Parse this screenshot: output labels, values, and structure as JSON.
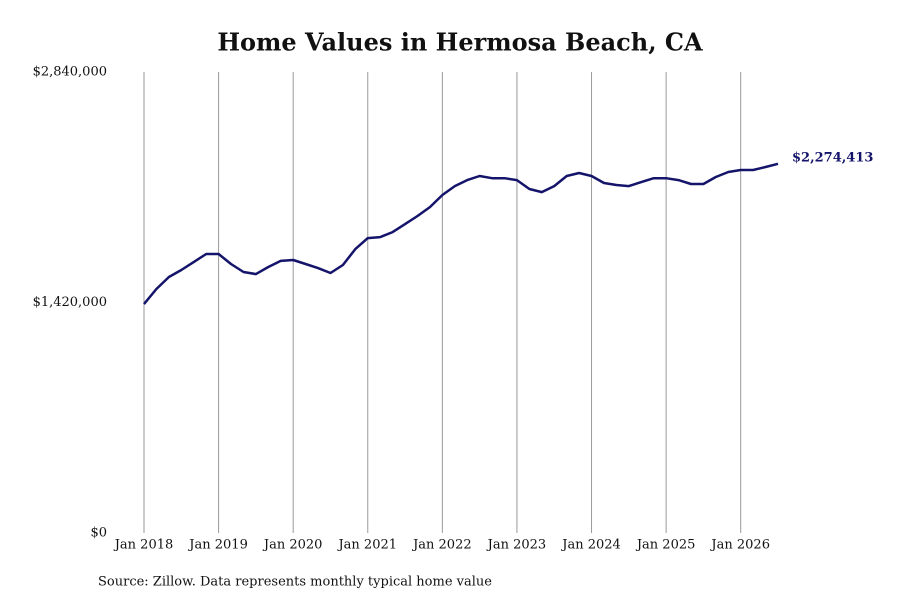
{
  "chart_data": {
    "type": "line",
    "title": "Home Values in Hermosa Beach, CA",
    "source": "Source: Zillow. Data represents monthly typical home value",
    "color": "#14146b",
    "grid": "vertical",
    "x": [
      "2018-01",
      "2018-03",
      "2018-05",
      "2018-07",
      "2018-09",
      "2018-11",
      "2019-01",
      "2019-03",
      "2019-05",
      "2019-07",
      "2019-09",
      "2019-11",
      "2020-01",
      "2020-03",
      "2020-05",
      "2020-07",
      "2020-09",
      "2020-11",
      "2021-01",
      "2021-03",
      "2021-05",
      "2021-07",
      "2021-09",
      "2021-11",
      "2022-01",
      "2022-03",
      "2022-05",
      "2022-07",
      "2022-09",
      "2022-11",
      "2023-01",
      "2023-03",
      "2023-05",
      "2023-07",
      "2023-09",
      "2023-11",
      "2024-01",
      "2024-03",
      "2024-05",
      "2024-07",
      "2024-09",
      "2024-11",
      "2025-01",
      "2025-03",
      "2025-05",
      "2025-07",
      "2025-09",
      "2025-11",
      "2026-01",
      "2026-03",
      "2026-05",
      "2026-07"
    ],
    "values": [
      1410000,
      1503000,
      1577000,
      1620000,
      1669000,
      1719000,
      1719000,
      1657000,
      1608000,
      1595000,
      1639000,
      1676000,
      1682000,
      1657000,
      1632000,
      1602000,
      1651000,
      1749000,
      1817000,
      1823000,
      1854000,
      1903000,
      1953000,
      2008000,
      2082000,
      2137000,
      2174000,
      2199000,
      2186000,
      2186000,
      2174000,
      2119000,
      2100000,
      2137000,
      2199000,
      2218000,
      2199000,
      2156000,
      2144000,
      2137000,
      2162000,
      2186000,
      2186000,
      2174000,
      2150000,
      2150000,
      2193000,
      2224000,
      2236000,
      2236000,
      2255000,
      2274413
    ],
    "value_labels": [
      null,
      null,
      null,
      null,
      null,
      null,
      null,
      null,
      null,
      null,
      null,
      null,
      null,
      null,
      null,
      null,
      null,
      null,
      null,
      null,
      null,
      null,
      null,
      null,
      null,
      null,
      null,
      null,
      null,
      null,
      null,
      null,
      null,
      null,
      null,
      null,
      null,
      null,
      null,
      null,
      null,
      null,
      null,
      null,
      null,
      null,
      null,
      null,
      null,
      null,
      null,
      "$2,274,413"
    ],
    "xlim": [
      "2018-01",
      "2026-07"
    ],
    "xticks": [
      {
        "value": "2018-01",
        "label": "Jan 2018"
      },
      {
        "value": "2019-01",
        "label": "Jan 2019"
      },
      {
        "value": "2020-01",
        "label": "Jan 2020"
      },
      {
        "value": "2021-01",
        "label": "Jan 2021"
      },
      {
        "value": "2022-01",
        "label": "Jan 2022"
      },
      {
        "value": "2023-01",
        "label": "Jan 2023"
      },
      {
        "value": "2024-01",
        "label": "Jan 2024"
      },
      {
        "value": "2025-01",
        "label": "Jan 2025"
      },
      {
        "value": "2026-01",
        "label": "Jan 2026"
      }
    ],
    "ylim": [
      0,
      2840000
    ],
    "yticks": [
      {
        "value": 0,
        "label": "$0"
      },
      {
        "value": 1420000,
        "label": "$1,420,000"
      },
      {
        "value": 2840000,
        "label": "$2,840,000"
      }
    ]
  }
}
